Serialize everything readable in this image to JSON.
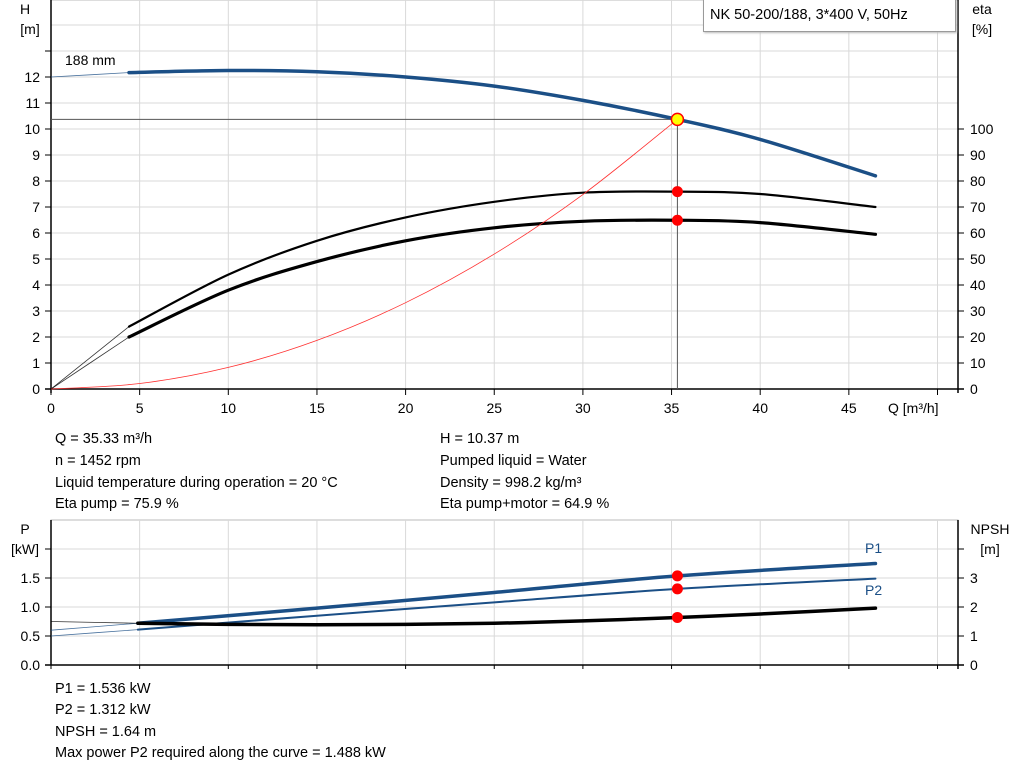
{
  "chart_data": [
    {
      "type": "line",
      "title": "NK 50-200/188, 3*400 V, 50Hz",
      "xlabel": "Q [m³/h]",
      "ylabel_left": [
        "H",
        "[m]"
      ],
      "ylabel_right": [
        "eta",
        "[%]"
      ],
      "xlim": [
        0,
        50
      ],
      "ylim_left": [
        0,
        15
      ],
      "ylim_right": [
        0,
        150
      ],
      "x_ticks": [
        0,
        5,
        10,
        15,
        20,
        25,
        30,
        35,
        40,
        45
      ],
      "y_ticks_left": [
        0,
        1,
        2,
        3,
        4,
        5,
        6,
        7,
        8,
        9,
        10,
        11,
        12
      ],
      "y_ticks_right": [
        0,
        10,
        20,
        30,
        40,
        50,
        60,
        70,
        80,
        90,
        100
      ],
      "grid": true,
      "curve_label": "188 mm",
      "series": [
        {
          "key": "H",
          "axis": "left",
          "color": "#1b4f86",
          "extrapolated_until": 4.4,
          "x": [
            0,
            4.4,
            10,
            15,
            20,
            25,
            30,
            35.33,
            40,
            46.5
          ],
          "y": [
            12.0,
            12.17,
            12.25,
            12.2,
            12.0,
            11.65,
            11.1,
            10.37,
            9.6,
            8.2
          ]
        },
        {
          "key": "eta_pump",
          "axis": "right",
          "color": "#000000",
          "extrapolated_until": 4.4,
          "x": [
            0,
            4.4,
            10,
            15,
            20,
            25,
            30,
            35.33,
            40,
            46.5
          ],
          "y": [
            0,
            24,
            44,
            57,
            66,
            72,
            75.5,
            75.9,
            75,
            70
          ]
        },
        {
          "key": "eta_total",
          "axis": "right",
          "color": "#000000",
          "extrapolated_until": 4.4,
          "x": [
            0,
            4.4,
            10,
            15,
            20,
            25,
            30,
            35.33,
            40,
            46.5
          ],
          "y": [
            0,
            20,
            38,
            49,
            57,
            62,
            64.5,
            64.9,
            64,
            59.5
          ]
        },
        {
          "key": "system",
          "axis": "left",
          "color": "#ff3030",
          "x": [
            0,
            5,
            10,
            15,
            20,
            25,
            30,
            35.33
          ],
          "y": [
            0,
            0.21,
            0.83,
            1.87,
            3.32,
            5.19,
            7.48,
            10.37
          ]
        }
      ],
      "duty_point": {
        "Q": 35.33,
        "H": 10.37,
        "eta_pump": 75.9,
        "eta_total": 64.9
      }
    },
    {
      "type": "line",
      "xlim": [
        0,
        50
      ],
      "ylabel_left": [
        "P",
        "[kW]"
      ],
      "ylabel_right": [
        "NPSH",
        "[m]"
      ],
      "ylim_left": [
        0,
        2.5
      ],
      "ylim_right": [
        0,
        5
      ],
      "y_ticks_left": [
        "0.0",
        "0.5",
        "1.0",
        "1.5"
      ],
      "y_ticks_right": [
        "0",
        "1",
        "2",
        "3"
      ],
      "grid": true,
      "series": [
        {
          "key": "P1",
          "name": "P1",
          "axis": "left",
          "color": "#1b4f86",
          "extrapolated_until": 4.9,
          "x": [
            0,
            4.9,
            15,
            25,
            35.33,
            46.5
          ],
          "y": [
            0.6,
            0.72,
            0.98,
            1.25,
            1.536,
            1.75
          ]
        },
        {
          "key": "P2",
          "name": "P2",
          "axis": "left",
          "color": "#1b4f86",
          "extrapolated_until": 4.9,
          "x": [
            0,
            4.9,
            15,
            25,
            35.33,
            46.5
          ],
          "y": [
            0.5,
            0.61,
            0.85,
            1.08,
            1.312,
            1.49
          ]
        },
        {
          "key": "NPSH",
          "axis": "right",
          "color": "#000000",
          "extrapolated_until": 4.9,
          "x": [
            0,
            4.9,
            10,
            15,
            20,
            25,
            30,
            35.33,
            40,
            46.5
          ],
          "y": [
            1.5,
            1.44,
            1.4,
            1.39,
            1.4,
            1.44,
            1.52,
            1.64,
            1.76,
            1.96
          ]
        }
      ]
    }
  ],
  "info_top": {
    "left": [
      "Q = 35.33 m³/h",
      "n = 1452 rpm",
      "Liquid temperature during operation = 20 °C",
      "Eta pump = 75.9 %"
    ],
    "right": [
      "H = 10.37 m",
      "Pumped liquid = Water",
      "Density = 998.2 kg/m³",
      "Eta pump+motor = 64.9 %"
    ]
  },
  "info_bottom": [
    "P1 = 1.536 kW",
    "P2 = 1.312 kW",
    "NPSH = 1.64 m",
    "Max power P2 required along the curve = 1.488 kW"
  ],
  "colors": {
    "curve_blue": "#1b4f86",
    "duty_red": "#ff0000",
    "duty_yellow": "#ffff00",
    "grid": "#d9d9d9"
  }
}
